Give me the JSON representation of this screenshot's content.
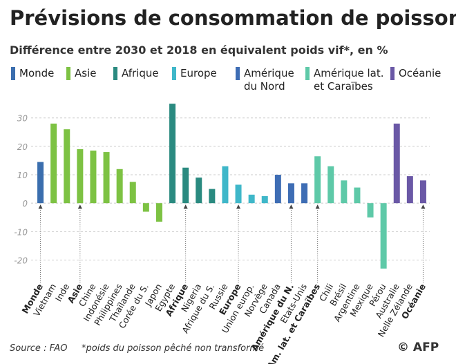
{
  "chart_data": {
    "type": "bar",
    "title": "Prévisions de consommation de poisson",
    "subtitle": "Différence entre 2030 et 2018 en équivalent poids vif*, en %",
    "categories": [
      "Monde",
      "Vietnam",
      "Inde",
      "Asie",
      "Chine",
      "Indonésie",
      "Philippines",
      "Thaïlande",
      "Corée du S.",
      "Japon",
      "Egypte",
      "Afrique",
      "Nigeria",
      "Afrique du S.",
      "Russie",
      "Europe",
      "Union europ.",
      "Norvège",
      "Canada",
      "Amérique du N.",
      "Etats-Unis",
      "Am. lat. et Caraïbes",
      "Chili",
      "Brésil",
      "Argentine",
      "Mexique",
      "Pérou",
      "Australie",
      "Nelle Zélande",
      "Océanie"
    ],
    "series": [
      {
        "name": "Monde",
        "color": "#3b6eae",
        "values": [
          14.5,
          null,
          null,
          null,
          null,
          null,
          null,
          null,
          null,
          null,
          null,
          null,
          null,
          null,
          null,
          null,
          null,
          null,
          null,
          null,
          null,
          null,
          null,
          null,
          null,
          null,
          null,
          null,
          null,
          null
        ]
      },
      {
        "name": "Asie",
        "color": "#7dc243",
        "values": [
          null,
          28,
          26,
          19,
          18.5,
          18,
          12,
          7.5,
          -3,
          -6.5,
          null,
          null,
          null,
          null,
          null,
          null,
          null,
          null,
          null,
          null,
          null,
          null,
          null,
          null,
          null,
          null,
          null,
          null,
          null,
          null
        ]
      },
      {
        "name": "Afrique",
        "color": "#2a8a80",
        "values": [
          null,
          null,
          null,
          null,
          null,
          null,
          null,
          null,
          null,
          null,
          35,
          12.5,
          9,
          5,
          null,
          null,
          null,
          null,
          null,
          null,
          null,
          null,
          null,
          null,
          null,
          null,
          null,
          null,
          null,
          null
        ]
      },
      {
        "name": "Europe",
        "color": "#3fb7c9",
        "values": [
          null,
          null,
          null,
          null,
          null,
          null,
          null,
          null,
          null,
          null,
          null,
          null,
          null,
          null,
          13,
          6.5,
          3,
          2.5,
          null,
          null,
          null,
          null,
          null,
          null,
          null,
          null,
          null,
          null,
          null,
          null
        ]
      },
      {
        "name": "Amérique du Nord",
        "color": "#3e6db4",
        "values": [
          null,
          null,
          null,
          null,
          null,
          null,
          null,
          null,
          null,
          null,
          null,
          null,
          null,
          null,
          null,
          null,
          null,
          null,
          10,
          7,
          7,
          null,
          null,
          null,
          null,
          null,
          null,
          null,
          null,
          null
        ]
      },
      {
        "name": "Amérique lat. et Caraïbes",
        "color": "#5ec9a8",
        "values": [
          null,
          null,
          null,
          null,
          null,
          null,
          null,
          null,
          null,
          null,
          null,
          null,
          null,
          null,
          null,
          null,
          null,
          null,
          null,
          null,
          null,
          16.5,
          13,
          8,
          5.5,
          -5,
          -23,
          null,
          null,
          null
        ]
      },
      {
        "name": "Océanie",
        "color": "#6a58a6",
        "values": [
          null,
          null,
          null,
          null,
          null,
          null,
          null,
          null,
          null,
          null,
          null,
          null,
          null,
          null,
          null,
          null,
          null,
          null,
          null,
          null,
          null,
          null,
          null,
          null,
          null,
          null,
          null,
          28,
          9.5,
          8
        ]
      }
    ],
    "ylim": [
      -24.5,
      36
    ],
    "yticks": [
      -20,
      -10,
      0,
      10,
      20,
      30
    ],
    "grid": true
  },
  "footer": {
    "source": "Source : FAO",
    "note": "*poids du poisson pêché non transformé",
    "credit": "© AFP"
  }
}
